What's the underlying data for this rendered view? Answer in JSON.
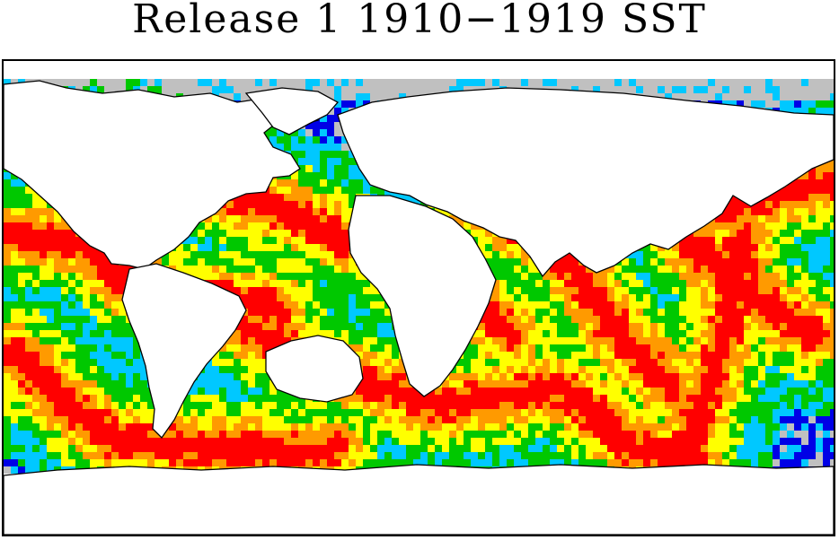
{
  "title": "Release 1 1910−1919 SST",
  "map": {
    "projection": "equirectangular",
    "grid_cell_deg": 2,
    "colors": {
      "none_obs": "#c0c0c0",
      "low": "#0000e6",
      "low_mid": "#00c8ff",
      "mid": "#00c800",
      "mid_high": "#ffff00",
      "high": "#ff9a00",
      "very_high": "#ff0000"
    }
  }
}
